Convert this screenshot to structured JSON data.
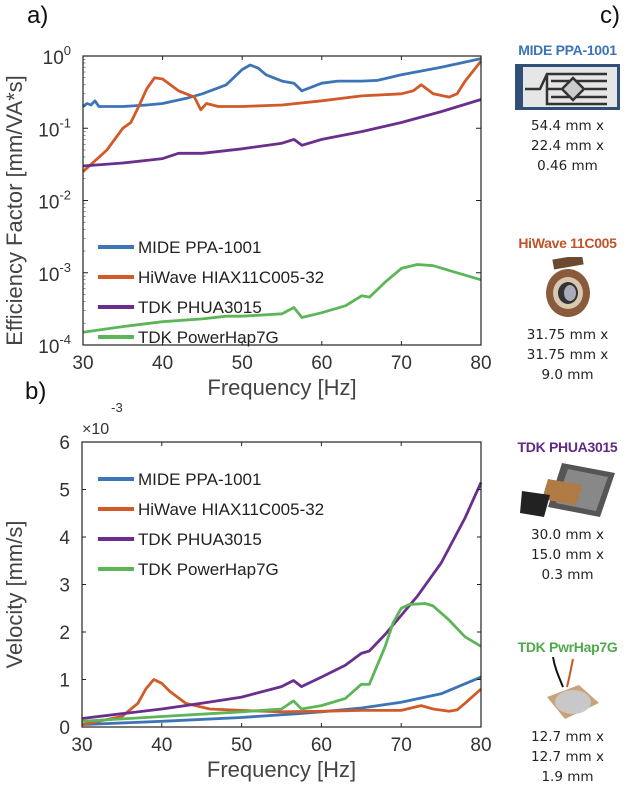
{
  "panel_labels": {
    "a": "a)",
    "b": "b)",
    "c": "c)"
  },
  "colors": {
    "mide": "#3d74b6",
    "hiwave": "#d15a28",
    "tdk_phua": "#6a2f8c",
    "tdk_powerhap": "#5db55a"
  },
  "chart_data": [
    {
      "type": "line",
      "xlabel": "Frequency [Hz]",
      "ylabel": "Efficiency Factor [mm/VA*s]",
      "xlim": [
        30,
        80
      ],
      "ylim": [
        0.0001,
        1
      ],
      "yscale": "log",
      "xticks": [
        30,
        40,
        50,
        60,
        70,
        80
      ],
      "yticks": [
        {
          "base": "10",
          "exp": "-4",
          "value": 0.0001
        },
        {
          "base": "10",
          "exp": "-3",
          "value": 0.001
        },
        {
          "base": "10",
          "exp": "-2",
          "value": 0.01
        },
        {
          "base": "10",
          "exp": "-1",
          "value": 0.1
        },
        {
          "base": "10",
          "exp": "0",
          "value": 1
        }
      ],
      "grid": false,
      "legend": "lower-left",
      "x": [],
      "series": [
        {
          "name": "MIDE PPA-1001",
          "color_key": "mide",
          "points": [
            [
              30,
              0.2
            ],
            [
              30.5,
              0.22
            ],
            [
              31,
              0.21
            ],
            [
              31.5,
              0.24
            ],
            [
              32,
              0.2
            ],
            [
              35,
              0.2
            ],
            [
              38,
              0.21
            ],
            [
              40,
              0.22
            ],
            [
              43,
              0.26
            ],
            [
              45,
              0.3
            ],
            [
              48,
              0.4
            ],
            [
              50,
              0.65
            ],
            [
              51,
              0.75
            ],
            [
              52,
              0.68
            ],
            [
              53,
              0.55
            ],
            [
              55,
              0.45
            ],
            [
              56.5,
              0.42
            ],
            [
              57.5,
              0.33
            ],
            [
              60,
              0.42
            ],
            [
              62,
              0.45
            ],
            [
              65,
              0.45
            ],
            [
              67,
              0.46
            ],
            [
              70,
              0.55
            ],
            [
              75,
              0.7
            ],
            [
              80,
              0.92
            ]
          ]
        },
        {
          "name": "HiWave HIAX11C005-32",
          "color_key": "hiwave",
          "points": [
            [
              30,
              0.025
            ],
            [
              33,
              0.05
            ],
            [
              35,
              0.1
            ],
            [
              36,
              0.12
            ],
            [
              37,
              0.2
            ],
            [
              38,
              0.35
            ],
            [
              39,
              0.5
            ],
            [
              40,
              0.48
            ],
            [
              42,
              0.33
            ],
            [
              44,
              0.27
            ],
            [
              44.8,
              0.18
            ],
            [
              45.5,
              0.22
            ],
            [
              47,
              0.2
            ],
            [
              50,
              0.2
            ],
            [
              55,
              0.21
            ],
            [
              60,
              0.24
            ],
            [
              65,
              0.28
            ],
            [
              70,
              0.3
            ],
            [
              71.5,
              0.33
            ],
            [
              72.5,
              0.4
            ],
            [
              74,
              0.3
            ],
            [
              76,
              0.27
            ],
            [
              77,
              0.3
            ],
            [
              78,
              0.45
            ],
            [
              80,
              0.85
            ]
          ]
        },
        {
          "name": "TDK PHUA3015",
          "color_key": "tdk_phua",
          "points": [
            [
              30,
              0.03
            ],
            [
              35,
              0.033
            ],
            [
              40,
              0.038
            ],
            [
              42,
              0.045
            ],
            [
              45,
              0.045
            ],
            [
              50,
              0.052
            ],
            [
              55,
              0.062
            ],
            [
              56.5,
              0.07
            ],
            [
              57.5,
              0.058
            ],
            [
              60,
              0.07
            ],
            [
              65,
              0.09
            ],
            [
              70,
              0.12
            ],
            [
              75,
              0.17
            ],
            [
              80,
              0.25
            ]
          ]
        },
        {
          "name": "TDK PowerHap7G",
          "color_key": "tdk_powerhap",
          "points": [
            [
              30,
              0.00015
            ],
            [
              35,
              0.00018
            ],
            [
              40,
              0.00021
            ],
            [
              45,
              0.00023
            ],
            [
              48,
              0.00025
            ],
            [
              50,
              0.00025
            ],
            [
              55,
              0.00027
            ],
            [
              56.5,
              0.00033
            ],
            [
              57.5,
              0.00024
            ],
            [
              60,
              0.00028
            ],
            [
              63,
              0.00035
            ],
            [
              65,
              0.00048
            ],
            [
              66,
              0.00046
            ],
            [
              68,
              0.00075
            ],
            [
              70,
              0.00115
            ],
            [
              72,
              0.0013
            ],
            [
              74,
              0.00125
            ],
            [
              77,
              0.001
            ],
            [
              80,
              0.0008
            ]
          ]
        }
      ]
    },
    {
      "type": "line",
      "xlabel": "Frequency [Hz]",
      "ylabel": "Velocity [mm/s]",
      "multiplier": {
        "prefix": "×10",
        "exp": "-3"
      },
      "xlim": [
        30,
        80
      ],
      "ylim": [
        0,
        0.006
      ],
      "xticks": [
        30,
        40,
        50,
        60,
        70,
        80
      ],
      "yticks": [
        0,
        1,
        2,
        3,
        4,
        5,
        6
      ],
      "grid": false,
      "legend": "upper-left",
      "series": [
        {
          "name": "MIDE PPA-1001",
          "color_key": "mide",
          "points": [
            [
              30,
              5e-05
            ],
            [
              40,
              0.00012
            ],
            [
              50,
              0.0002
            ],
            [
              57,
              0.00028
            ],
            [
              60,
              0.00032
            ],
            [
              65,
              0.0004
            ],
            [
              70,
              0.00052
            ],
            [
              75,
              0.0007
            ],
            [
              80,
              0.00105
            ]
          ]
        },
        {
          "name": "HiWave HIAX11C005-32",
          "color_key": "hiwave",
          "points": [
            [
              30,
              5e-05
            ],
            [
              35,
              0.00022
            ],
            [
              37,
              0.0005
            ],
            [
              38,
              0.0008
            ],
            [
              39,
              0.001
            ],
            [
              40,
              0.00092
            ],
            [
              41,
              0.00075
            ],
            [
              43,
              0.0005
            ],
            [
              46,
              0.00038
            ],
            [
              50,
              0.00035
            ],
            [
              55,
              0.00032
            ],
            [
              60,
              0.00033
            ],
            [
              65,
              0.00035
            ],
            [
              70,
              0.00035
            ],
            [
              72.5,
              0.00045
            ],
            [
              74,
              0.00038
            ],
            [
              76,
              0.00033
            ],
            [
              77,
              0.00036
            ],
            [
              78,
              0.0005
            ],
            [
              80,
              0.0008
            ]
          ]
        },
        {
          "name": "TDK PHUA3015",
          "color_key": "tdk_phua",
          "points": [
            [
              30,
              0.00018
            ],
            [
              35,
              0.00028
            ],
            [
              40,
              0.00038
            ],
            [
              45,
              0.0005
            ],
            [
              50,
              0.00063
            ],
            [
              55,
              0.00085
            ],
            [
              56.5,
              0.00098
            ],
            [
              57.5,
              0.00085
            ],
            [
              60,
              0.00105
            ],
            [
              63,
              0.0013
            ],
            [
              65,
              0.00155
            ],
            [
              66,
              0.0016
            ],
            [
              68,
              0.00195
            ],
            [
              70,
              0.00235
            ],
            [
              72,
              0.00275
            ],
            [
              75,
              0.00345
            ],
            [
              78,
              0.0044
            ],
            [
              80,
              0.00515
            ]
          ]
        },
        {
          "name": "TDK PowerHap7G",
          "color_key": "tdk_powerhap",
          "points": [
            [
              30,
              0.00012
            ],
            [
              40,
              0.00022
            ],
            [
              50,
              0.00032
            ],
            [
              55,
              0.00038
            ],
            [
              56.5,
              0.00055
            ],
            [
              57.5,
              0.00038
            ],
            [
              60,
              0.00045
            ],
            [
              63,
              0.0006
            ],
            [
              65,
              0.0009
            ],
            [
              66,
              0.0009
            ],
            [
              68,
              0.0017
            ],
            [
              69,
              0.0022
            ],
            [
              70,
              0.0025
            ],
            [
              71,
              0.00258
            ],
            [
              73,
              0.0026
            ],
            [
              74,
              0.00255
            ],
            [
              76,
              0.00225
            ],
            [
              78,
              0.0019
            ],
            [
              80,
              0.0017
            ]
          ]
        }
      ]
    }
  ],
  "devices": [
    {
      "name": "MIDE PPA-1001",
      "color_key": "mide",
      "dims": [
        "54.4 mm x",
        "22.4 mm x",
        "0.46 mm"
      ]
    },
    {
      "name": "HiWave 11C005",
      "color_key": "hiwave",
      "dims": [
        "31.75 mm x",
        "31.75 mm x",
        "9.0 mm"
      ]
    },
    {
      "name": "TDK PHUA3015",
      "color_key": "tdk_phua",
      "dims": [
        "30.0 mm x",
        "15.0 mm x",
        "0.3 mm"
      ]
    },
    {
      "name": "TDK PwrHap7G",
      "color_key": "tdk_powerhap",
      "dims": [
        "12.7 mm x",
        "12.7 mm x",
        "1.9 mm"
      ]
    }
  ]
}
